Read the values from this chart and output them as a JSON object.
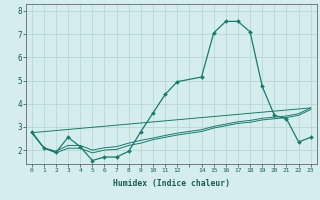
{
  "xlabel": "Humidex (Indice chaleur)",
  "background_color": "#d5eeed",
  "grid_color": "#b8d8d5",
  "line_color": "#1a7a6e",
  "xlim": [
    -0.5,
    23.5
  ],
  "ylim": [
    1.4,
    8.3
  ],
  "yticks": [
    2,
    3,
    4,
    5,
    6,
    7,
    8
  ],
  "xticks": [
    0,
    1,
    2,
    3,
    4,
    5,
    6,
    7,
    8,
    9,
    10,
    11,
    12,
    13,
    14,
    15,
    16,
    17,
    18,
    19,
    20,
    21,
    22,
    23
  ],
  "xtick_labels": [
    "0",
    "1",
    "2",
    "3",
    "4",
    "5",
    "6",
    "7",
    "8",
    "9",
    "10",
    "11",
    "12",
    "",
    "14",
    "15",
    "16",
    "17",
    "18",
    "19",
    "20",
    "21",
    "22",
    "23"
  ],
  "line1_x": [
    0,
    1,
    2,
    3,
    4,
    5,
    6,
    7,
    8,
    9,
    10,
    11,
    12,
    14,
    15,
    16,
    17,
    18,
    19,
    20,
    21,
    22,
    23
  ],
  "line1_y": [
    2.8,
    2.1,
    1.9,
    2.55,
    2.15,
    1.55,
    1.7,
    1.7,
    1.95,
    2.8,
    3.6,
    4.4,
    4.95,
    5.15,
    7.05,
    7.55,
    7.55,
    7.1,
    4.75,
    3.5,
    3.35,
    2.35,
    2.55
  ],
  "line2_x": [
    0,
    1,
    2,
    3,
    4,
    5,
    6,
    7,
    8,
    9,
    10,
    11,
    12,
    14,
    15,
    16,
    17,
    18,
    19,
    20,
    21,
    22,
    23
  ],
  "line2_y": [
    2.75,
    2.1,
    1.95,
    2.2,
    2.2,
    2.0,
    2.1,
    2.15,
    2.3,
    2.42,
    2.52,
    2.63,
    2.73,
    2.88,
    3.02,
    3.12,
    3.22,
    3.28,
    3.37,
    3.42,
    3.47,
    3.57,
    3.82
  ],
  "line3_x": [
    0,
    1,
    2,
    3,
    4,
    5,
    6,
    7,
    8,
    9,
    10,
    11,
    12,
    14,
    15,
    16,
    17,
    18,
    19,
    20,
    21,
    22,
    23
  ],
  "line3_y": [
    2.75,
    2.1,
    1.88,
    2.08,
    2.08,
    1.88,
    2.0,
    2.03,
    2.2,
    2.3,
    2.45,
    2.55,
    2.65,
    2.8,
    2.95,
    3.05,
    3.15,
    3.2,
    3.3,
    3.35,
    3.4,
    3.5,
    3.75
  ],
  "line4_x": [
    0,
    23
  ],
  "line4_y": [
    2.75,
    3.82
  ]
}
